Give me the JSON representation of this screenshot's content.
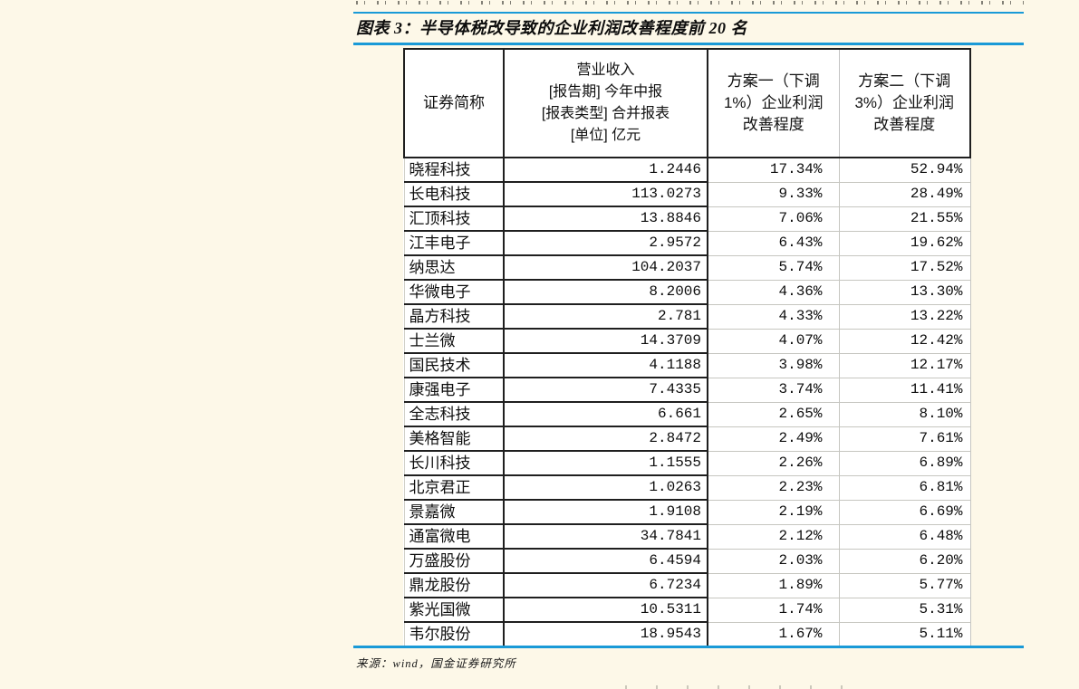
{
  "page": {
    "background_color": "#fdf8e8",
    "accent_blue": "#1a9ad7"
  },
  "figure": {
    "title": "图表 3：半导体税改导致的企业利润改善程度前 20 名",
    "source": "来源：wind，国金证券研究所"
  },
  "chart_data": {
    "type": "table",
    "title": "半导体税改导致的企业利润改善程度前 20 名",
    "columns": [
      "证券简称",
      "营业收入\n[报告期] 今年中报\n[报表类型] 合并报表\n[单位] 亿元",
      "方案一（下调\n1%）企业利润\n改善程度",
      "方案二（下调\n3%）企业利润\n改善程度"
    ],
    "rows": [
      [
        "晓程科技",
        "1.2446",
        "17.34%",
        "52.94%"
      ],
      [
        "长电科技",
        "113.0273",
        "9.33%",
        "28.49%"
      ],
      [
        "汇顶科技",
        "13.8846",
        "7.06%",
        "21.55%"
      ],
      [
        "江丰电子",
        "2.9572",
        "6.43%",
        "19.62%"
      ],
      [
        "纳思达",
        "104.2037",
        "5.74%",
        "17.52%"
      ],
      [
        "华微电子",
        "8.2006",
        "4.36%",
        "13.30%"
      ],
      [
        "晶方科技",
        "2.781",
        "4.33%",
        "13.22%"
      ],
      [
        "士兰微",
        "14.3709",
        "4.07%",
        "12.42%"
      ],
      [
        "国民技术",
        "4.1188",
        "3.98%",
        "12.17%"
      ],
      [
        "康强电子",
        "7.4335",
        "3.74%",
        "11.41%"
      ],
      [
        "全志科技",
        "6.661",
        "2.65%",
        "8.10%"
      ],
      [
        "美格智能",
        "2.8472",
        "2.49%",
        "7.61%"
      ],
      [
        "长川科技",
        "1.1555",
        "2.26%",
        "6.89%"
      ],
      [
        "北京君正",
        "1.0263",
        "2.23%",
        "6.81%"
      ],
      [
        "景嘉微",
        "1.9108",
        "2.19%",
        "6.69%"
      ],
      [
        "通富微电",
        "34.7841",
        "2.12%",
        "6.48%"
      ],
      [
        "万盛股份",
        "6.4594",
        "2.03%",
        "6.20%"
      ],
      [
        "鼎龙股份",
        "6.7234",
        "1.89%",
        "5.77%"
      ],
      [
        "紫光国微",
        "10.5311",
        "1.74%",
        "5.31%"
      ],
      [
        "韦尔股份",
        "18.9543",
        "1.67%",
        "5.11%"
      ]
    ]
  }
}
